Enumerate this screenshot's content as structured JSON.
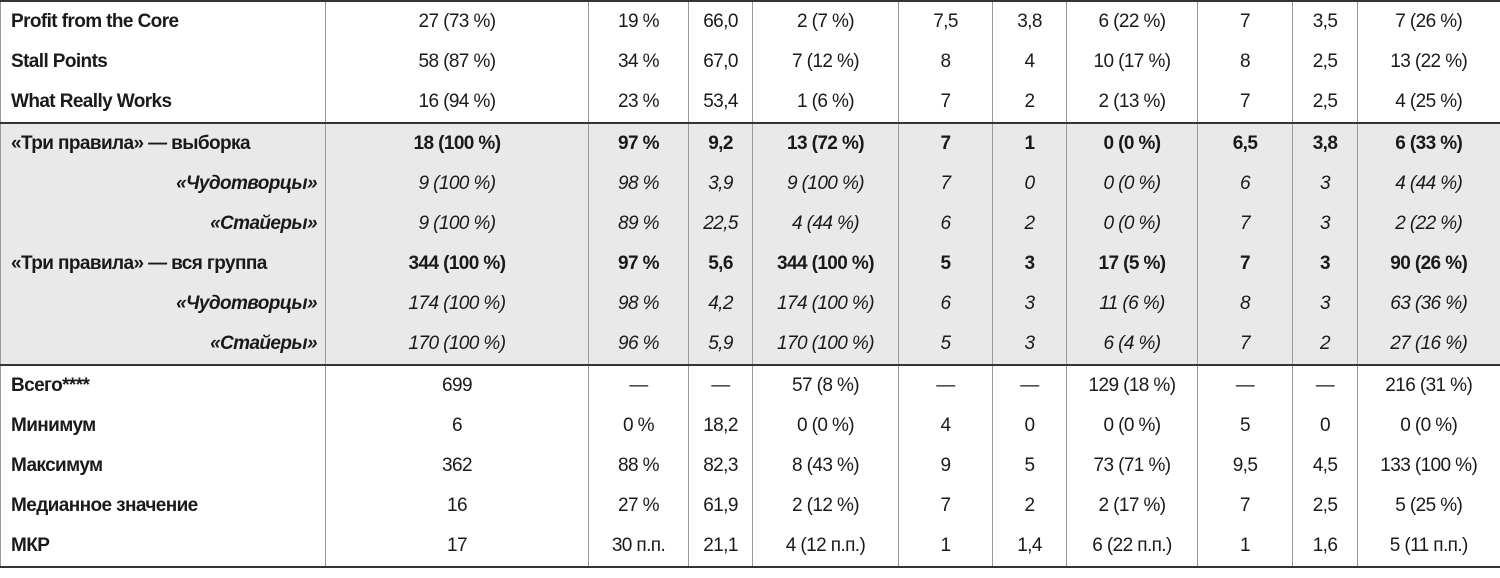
{
  "table": {
    "sections": [
      {
        "rows": [
          [
            "Profit from the Core",
            "27 (73 %)",
            "19 %",
            "66,0",
            "2 (7 %)",
            "7,5",
            "3,8",
            "6 (22 %)",
            "7",
            "3,5",
            "7 (26 %)"
          ],
          [
            "Stall Points",
            "58 (87 %)",
            "34 %",
            "67,0",
            "7 (12 %)",
            "8",
            "4",
            "10 (17 %)",
            "8",
            "2,5",
            "13 (22 %)"
          ],
          [
            "What Really Works",
            "16 (94 %)",
            "23 %",
            "53,4",
            "1 (6 %)",
            "7",
            "2",
            "2 (13 %)",
            "7",
            "2,5",
            "4 (25 %)"
          ]
        ]
      },
      {
        "rows": [
          [
            "«Три правила» — выборка",
            "18 (100 %)",
            "97 %",
            "9,2",
            "13 (72 %)",
            "7",
            "1",
            "0 (0 %)",
            "6,5",
            "3,8",
            "6 (33 %)"
          ],
          [
            "«Чудотворцы»",
            "9 (100 %)",
            "98 %",
            "3,9",
            "9 (100 %)",
            "7",
            "0",
            "0 (0 %)",
            "6",
            "3",
            "4 (44 %)"
          ],
          [
            "«Стайеры»",
            "9 (100 %)",
            "89 %",
            "22,5",
            "4 (44 %)",
            "6",
            "2",
            "0 (0 %)",
            "7",
            "3",
            "2 (22 %)"
          ],
          [
            "«Три правила» — вся группа",
            "344 (100 %)",
            "97 %",
            "5,6",
            "344 (100 %)",
            "5",
            "3",
            "17 (5 %)",
            "7",
            "3",
            "90 (26 %)"
          ],
          [
            "«Чудотворцы»",
            "174 (100 %)",
            "98 %",
            "4,2",
            "174 (100 %)",
            "6",
            "3",
            "11 (6 %)",
            "8",
            "3",
            "63 (36 %)"
          ],
          [
            "«Стайеры»",
            "170 (100 %)",
            "96 %",
            "5,9",
            "170 (100 %)",
            "5",
            "3",
            "6 (4 %)",
            "7",
            "2",
            "27 (16 %)"
          ]
        ]
      },
      {
        "rows": [
          [
            "Всего****",
            "699",
            "—",
            "—",
            "57 (8 %)",
            "—",
            "—",
            "129 (18 %)",
            "—",
            "—",
            "216 (31 %)"
          ],
          [
            "Минимум",
            "6",
            "0 %",
            "18,2",
            "0 (0 %)",
            "4",
            "0",
            "0 (0 %)",
            "5",
            "0",
            "0 (0 %)"
          ],
          [
            "Максимум",
            "362",
            "88 %",
            "82,3",
            "8 (43 %)",
            "9",
            "5",
            "73 (71 %)",
            "9,5",
            "4,5",
            "133 (100 %)"
          ],
          [
            "Медианное значение",
            "16",
            "27 %",
            "61,9",
            "2 (12 %)",
            "7",
            "2",
            "2 (17 %)",
            "7",
            "2,5",
            "5 (25 %)"
          ],
          [
            "МКР",
            "17",
            "30 п.п.",
            "21,1",
            "4 (12 п.п.)",
            "1",
            "1,4",
            "6 (22 п.п.)",
            "1",
            "1,6",
            "5 (11 п.п.)"
          ]
        ]
      }
    ]
  }
}
